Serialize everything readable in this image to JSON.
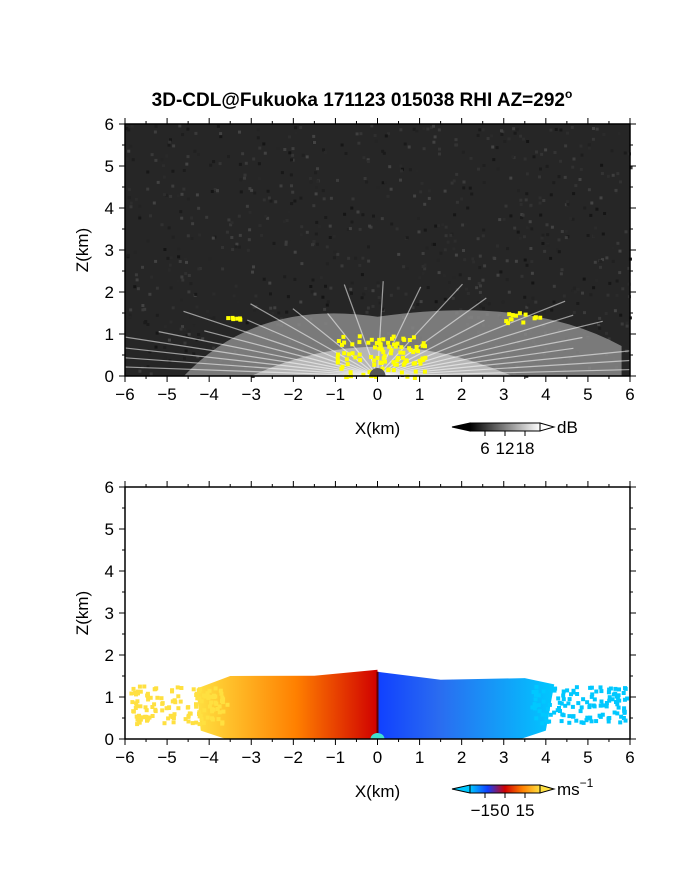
{
  "title": "3D-CDL@Fukuoka 171123 015038 RHI AZ=292",
  "title_superscript": "o",
  "chart_data": [
    {
      "type": "heatmap",
      "panel": "reflectivity",
      "xlabel": "X(km)",
      "ylabel": "Z(km)",
      "xlim": [
        -6,
        6
      ],
      "ylim": [
        0,
        6
      ],
      "xticks": [
        "-6",
        "-5",
        "-4",
        "-3",
        "-2",
        "-1",
        "0",
        "1",
        "2",
        "3",
        "4",
        "5",
        "6"
      ],
      "yticks": [
        "0",
        "1",
        "2",
        "3",
        "4",
        "5",
        "6"
      ],
      "colorbar": {
        "unit": "dB",
        "ticks": [
          "6",
          "12",
          "18"
        ],
        "colors": {
          "low": "#000000",
          "mid": "#808080",
          "high": "#ffffff",
          "over": "#ffff00"
        }
      },
      "features": [
        {
          "desc": "noise background",
          "z_range": [
            0,
            6
          ],
          "level": "low"
        },
        {
          "desc": "fan-shaped echo",
          "x_range": [
            -4.6,
            5.8
          ],
          "z_top": 1.6,
          "level": "high"
        },
        {
          "desc": "saturated echo",
          "x_range": [
            -1.0,
            1.1
          ],
          "z_range": [
            0,
            1.0
          ],
          "level": "over"
        },
        {
          "desc": "saturated echo",
          "x_range": [
            3.0,
            3.9
          ],
          "z_range": [
            1.3,
            1.6
          ],
          "level": "over"
        },
        {
          "desc": "saturated echo",
          "x_range": [
            -3.6,
            -3.3
          ],
          "z_range": [
            1.35,
            1.5
          ],
          "level": "over"
        }
      ]
    },
    {
      "type": "heatmap",
      "panel": "doppler_velocity",
      "xlabel": "X(km)",
      "ylabel": "Z(km)",
      "xlim": [
        -6,
        6
      ],
      "ylim": [
        0,
        6
      ],
      "xticks": [
        "-6",
        "-5",
        "-4",
        "-3",
        "-2",
        "-1",
        "0",
        "1",
        "2",
        "3",
        "4",
        "5",
        "6"
      ],
      "yticks": [
        "0",
        "1",
        "2",
        "3",
        "4",
        "5",
        "6"
      ],
      "colorbar": {
        "unit": "ms",
        "unit_superscript": "-1",
        "ticks": [
          "-15",
          "0",
          "15"
        ],
        "range": [
          -15,
          15
        ],
        "colors": {
          "neg_far": "#00c8ff",
          "neg": "#1040ff",
          "zero": "#d00000",
          "pos": "#ff8000",
          "pos_far": "#ffe040"
        }
      },
      "features": [
        {
          "desc": "approaching flow",
          "x_range": [
            0.0,
            6.0
          ],
          "z_top": 1.6,
          "velocity": -10
        },
        {
          "desc": "receding flow",
          "x_range": [
            -6.0,
            0.0
          ],
          "z_top": 1.65,
          "velocity": 12
        },
        {
          "desc": "near-zero shear line",
          "x": 0.0,
          "velocity": 0
        }
      ]
    }
  ]
}
